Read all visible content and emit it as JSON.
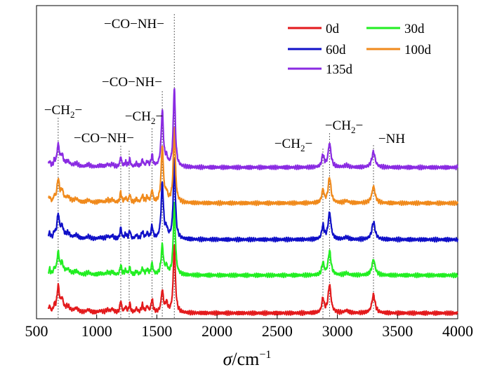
{
  "chart_data": {
    "type": "line",
    "xlabel_symbol": "σ",
    "xlabel_unit": "/cm",
    "xlabel_exp": "−1",
    "ylabel": "",
    "xlim": [
      500,
      4000
    ],
    "xticks": [
      500,
      1000,
      1500,
      2000,
      2500,
      3000,
      3500,
      4000
    ],
    "grid": false,
    "legend_position": "top-right",
    "series": [
      {
        "name": "0d",
        "color": "#e31a1c",
        "offset": 0
      },
      {
        "name": "30d",
        "color": "#22ee22",
        "offset": 1
      },
      {
        "name": "60d",
        "color": "#1010c8",
        "offset": 2
      },
      {
        "name": "100d",
        "color": "#f08a1c",
        "offset": 3
      },
      {
        "name": "135d",
        "color": "#8a2be2",
        "offset": 4
      }
    ],
    "peaks": [
      {
        "x": 608,
        "h": 0.22,
        "w": 8
      },
      {
        "x": 648,
        "h": 0.2,
        "w": 8
      },
      {
        "x": 680,
        "h": 0.85,
        "w": 12
      },
      {
        "x": 712,
        "h": 0.4,
        "w": 14
      },
      {
        "x": 760,
        "h": 0.2,
        "w": 22
      },
      {
        "x": 830,
        "h": 0.14,
        "w": 22
      },
      {
        "x": 930,
        "h": 0.1,
        "w": 20
      },
      {
        "x": 1030,
        "h": 0.06,
        "w": 25
      },
      {
        "x": 1090,
        "h": 0.1,
        "w": 14
      },
      {
        "x": 1130,
        "h": 0.12,
        "w": 14
      },
      {
        "x": 1200,
        "h": 0.4,
        "w": 8
      },
      {
        "x": 1240,
        "h": 0.18,
        "w": 10
      },
      {
        "x": 1275,
        "h": 0.3,
        "w": 8
      },
      {
        "x": 1330,
        "h": 0.14,
        "w": 10
      },
      {
        "x": 1380,
        "h": 0.26,
        "w": 10
      },
      {
        "x": 1420,
        "h": 0.2,
        "w": 10
      },
      {
        "x": 1460,
        "h": 0.45,
        "w": 9
      },
      {
        "x": 1545,
        "h": 2.1,
        "w": 11
      },
      {
        "x": 1580,
        "h": 0.3,
        "w": 12
      },
      {
        "x": 1645,
        "h": 3.0,
        "w": 10
      },
      {
        "x": 2880,
        "h": 0.48,
        "w": 11
      },
      {
        "x": 2935,
        "h": 0.95,
        "w": 14
      },
      {
        "x": 3075,
        "h": 0.08,
        "w": 20
      },
      {
        "x": 3300,
        "h": 0.62,
        "w": 16
      }
    ],
    "annotations": [
      {
        "label": "−CH",
        "sub": "2",
        "suffix": "−",
        "x": 680
      },
      {
        "label": "−CO−NH−",
        "sub": "",
        "suffix": "",
        "x": 1200
      },
      {
        "label": "−CH",
        "sub": "2",
        "suffix": "−",
        "x": 1460
      },
      {
        "label": "−CO−NH−",
        "sub": "",
        "suffix": "",
        "x": 1545
      },
      {
        "label": "−CO−NH−",
        "sub": "",
        "suffix": "",
        "x": 1645
      },
      {
        "label": "−CH",
        "sub": "2",
        "suffix": "−",
        "x": 2880
      },
      {
        "label": "−CH",
        "sub": "2",
        "suffix": "−",
        "x": 2935
      },
      {
        "label": "−NH",
        "sub": "",
        "suffix": "",
        "x": 3300
      }
    ],
    "extra_dashed_lines_x": [
      1270
    ]
  }
}
